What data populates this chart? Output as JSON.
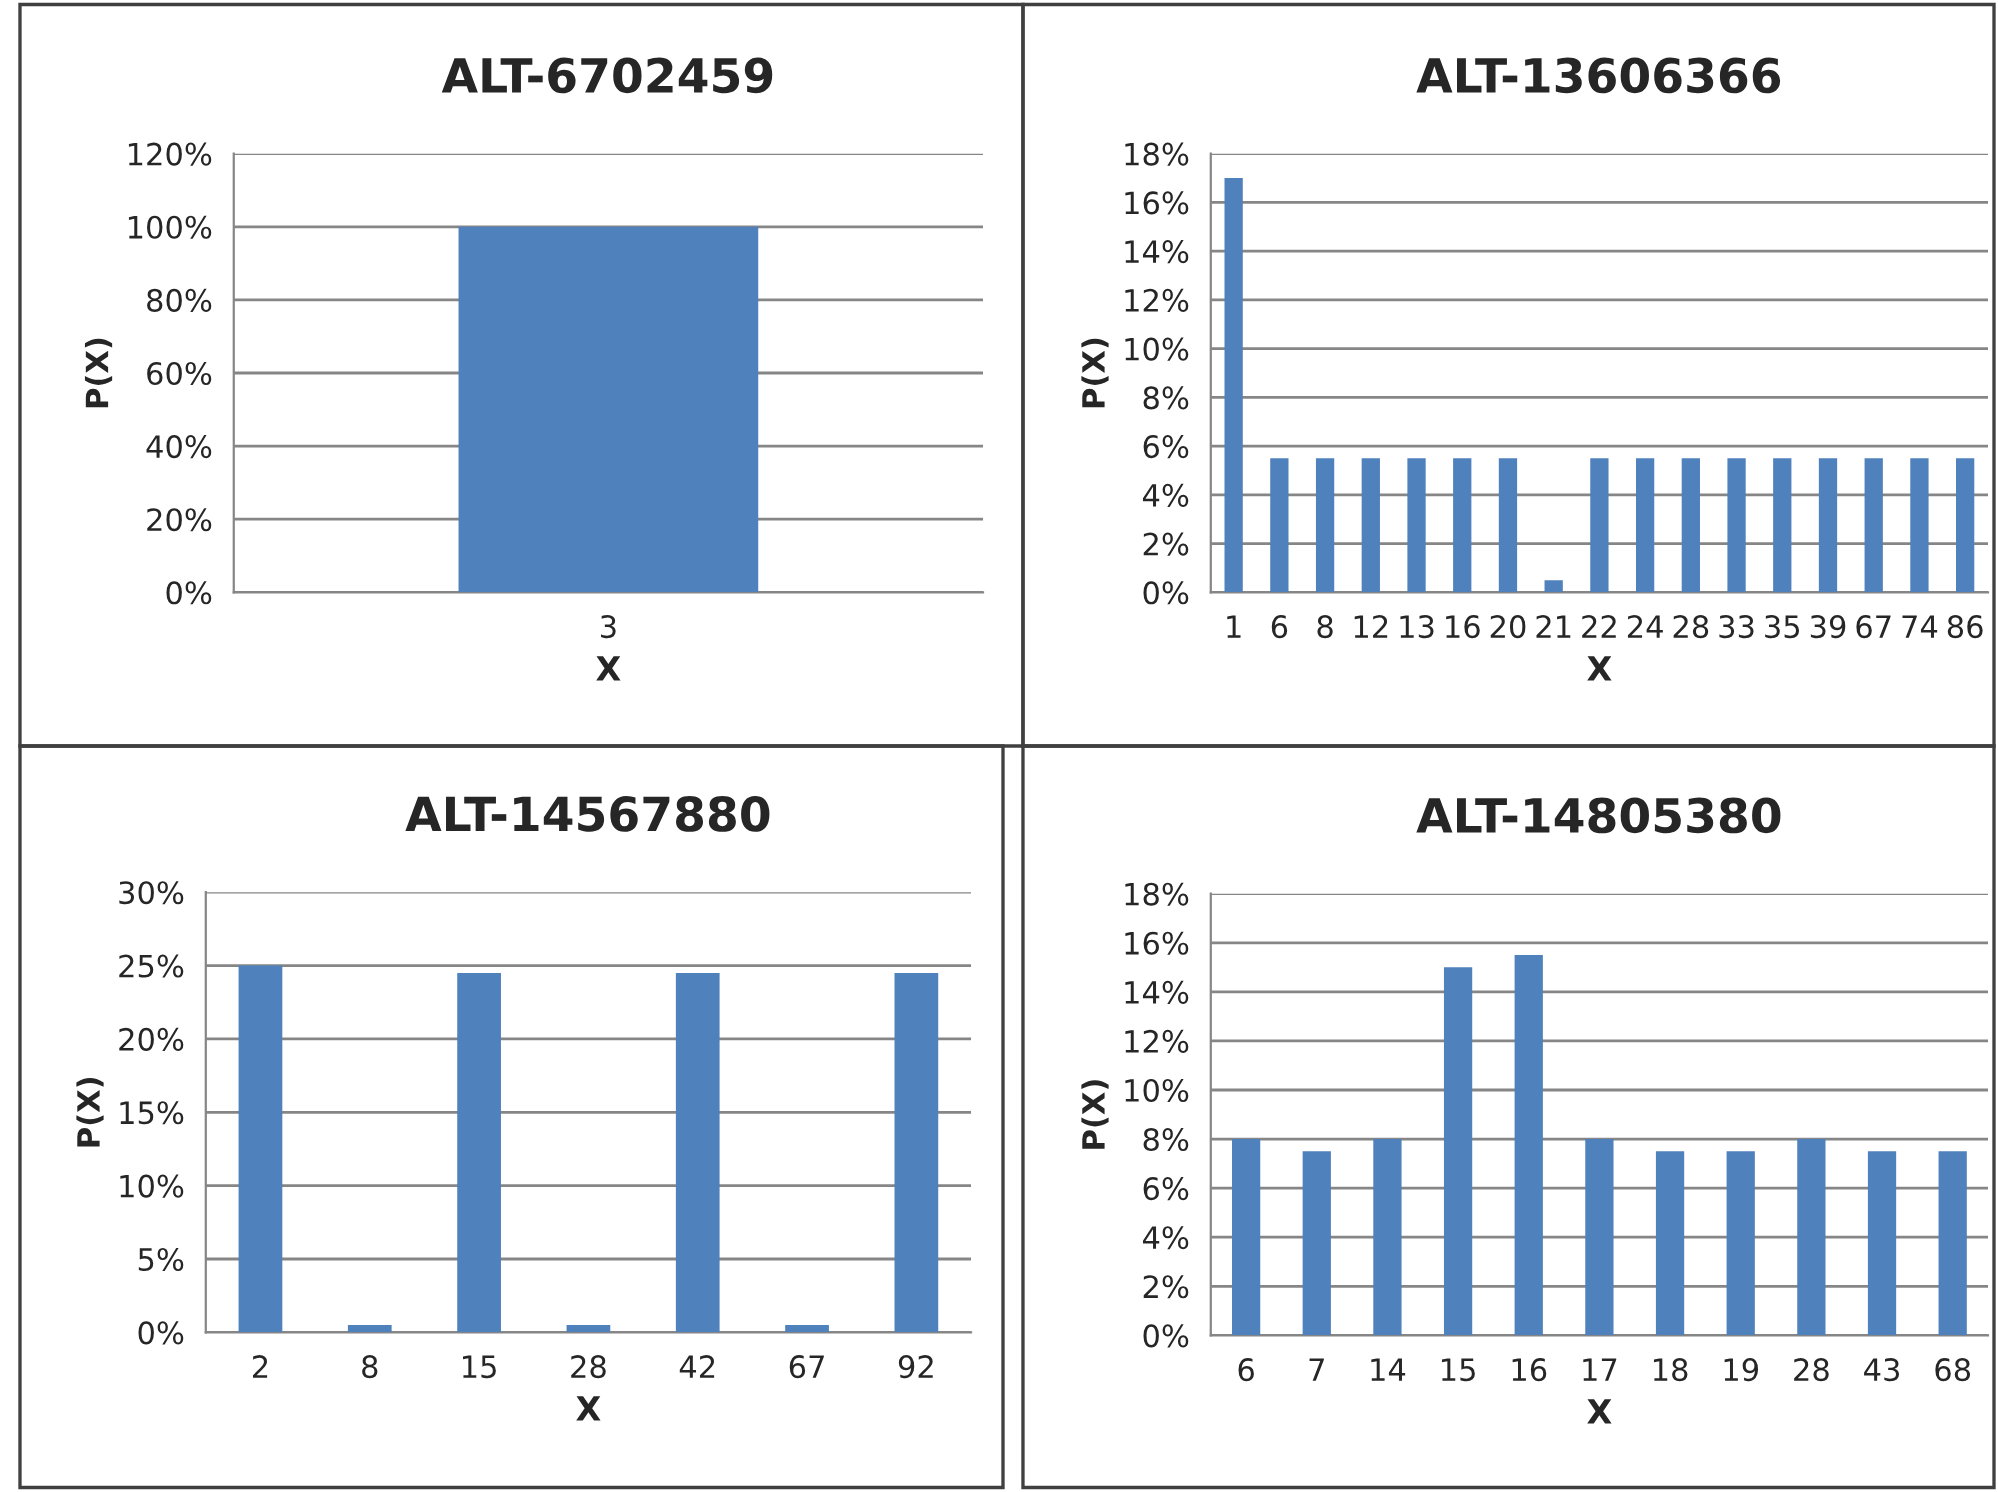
{
  "chart_data": [
    {
      "type": "bar",
      "title": "ALT-6702459",
      "xlabel": "X",
      "ylabel": "P(X)",
      "categories": [
        "3"
      ],
      "values": [
        100
      ],
      "color": "#4f81bd",
      "ylim": [
        0,
        120
      ],
      "yticks": [
        {
          "value": 0,
          "label": "0%"
        },
        {
          "value": 20,
          "label": "20%"
        },
        {
          "value": 40,
          "label": "40%"
        },
        {
          "value": 60,
          "label": "60%"
        },
        {
          "value": 80,
          "label": "80%"
        },
        {
          "value": 100,
          "label": "100%"
        },
        {
          "value": 120,
          "label": "120%"
        }
      ],
      "grid": "y",
      "legend": false
    },
    {
      "type": "bar",
      "title": "ALT-13606366",
      "xlabel": "X",
      "ylabel": "P(X)",
      "categories": [
        "1",
        "6",
        "8",
        "12",
        "13",
        "16",
        "20",
        "21",
        "22",
        "24",
        "28",
        "33",
        "35",
        "39",
        "67",
        "74",
        "86"
      ],
      "values": [
        17,
        5.5,
        5.5,
        5.5,
        5.5,
        5.5,
        5.5,
        0.5,
        5.5,
        5.5,
        5.5,
        5.5,
        5.5,
        5.5,
        5.5,
        5.5,
        5.5
      ],
      "color": "#4f81bd",
      "ylim": [
        0,
        18
      ],
      "yticks": [
        {
          "value": 0,
          "label": "0%"
        },
        {
          "value": 2,
          "label": "2%"
        },
        {
          "value": 4,
          "label": "4%"
        },
        {
          "value": 6,
          "label": "6%"
        },
        {
          "value": 8,
          "label": "8%"
        },
        {
          "value": 10,
          "label": "10%"
        },
        {
          "value": 12,
          "label": "12%"
        },
        {
          "value": 14,
          "label": "14%"
        },
        {
          "value": 16,
          "label": "16%"
        },
        {
          "value": 18,
          "label": "18%"
        }
      ],
      "grid": "y",
      "legend": false
    },
    {
      "type": "bar",
      "title": "ALT-14567880",
      "xlabel": "X",
      "ylabel": "P(X)",
      "categories": [
        "2",
        "8",
        "15",
        "28",
        "42",
        "67",
        "92"
      ],
      "values": [
        25,
        0.5,
        24.5,
        0.5,
        24.5,
        0.5,
        24.5
      ],
      "color": "#4f81bd",
      "ylim": [
        0,
        30
      ],
      "yticks": [
        {
          "value": 0,
          "label": "0%"
        },
        {
          "value": 5,
          "label": "5%"
        },
        {
          "value": 10,
          "label": "10%"
        },
        {
          "value": 15,
          "label": "15%"
        },
        {
          "value": 20,
          "label": "20%"
        },
        {
          "value": 25,
          "label": "25%"
        },
        {
          "value": 30,
          "label": "30%"
        }
      ],
      "grid": "y",
      "legend": false
    },
    {
      "type": "bar",
      "title": "ALT-14805380",
      "xlabel": "X",
      "ylabel": "P(X)",
      "categories": [
        "6",
        "7",
        "14",
        "15",
        "16",
        "17",
        "18",
        "19",
        "28",
        "43",
        "68"
      ],
      "values": [
        8,
        7.5,
        8,
        15,
        15.5,
        8,
        7.5,
        7.5,
        8,
        7.5,
        7.5
      ],
      "color": "#4f81bd",
      "ylim": [
        0,
        18
      ],
      "yticks": [
        {
          "value": 0,
          "label": "0%"
        },
        {
          "value": 2,
          "label": "2%"
        },
        {
          "value": 4,
          "label": "4%"
        },
        {
          "value": 6,
          "label": "6%"
        },
        {
          "value": 8,
          "label": "8%"
        },
        {
          "value": 10,
          "label": "10%"
        },
        {
          "value": 12,
          "label": "12%"
        },
        {
          "value": 14,
          "label": "14%"
        },
        {
          "value": 16,
          "label": "16%"
        },
        {
          "value": 18,
          "label": "18%"
        }
      ],
      "grid": "y",
      "legend": false
    }
  ]
}
